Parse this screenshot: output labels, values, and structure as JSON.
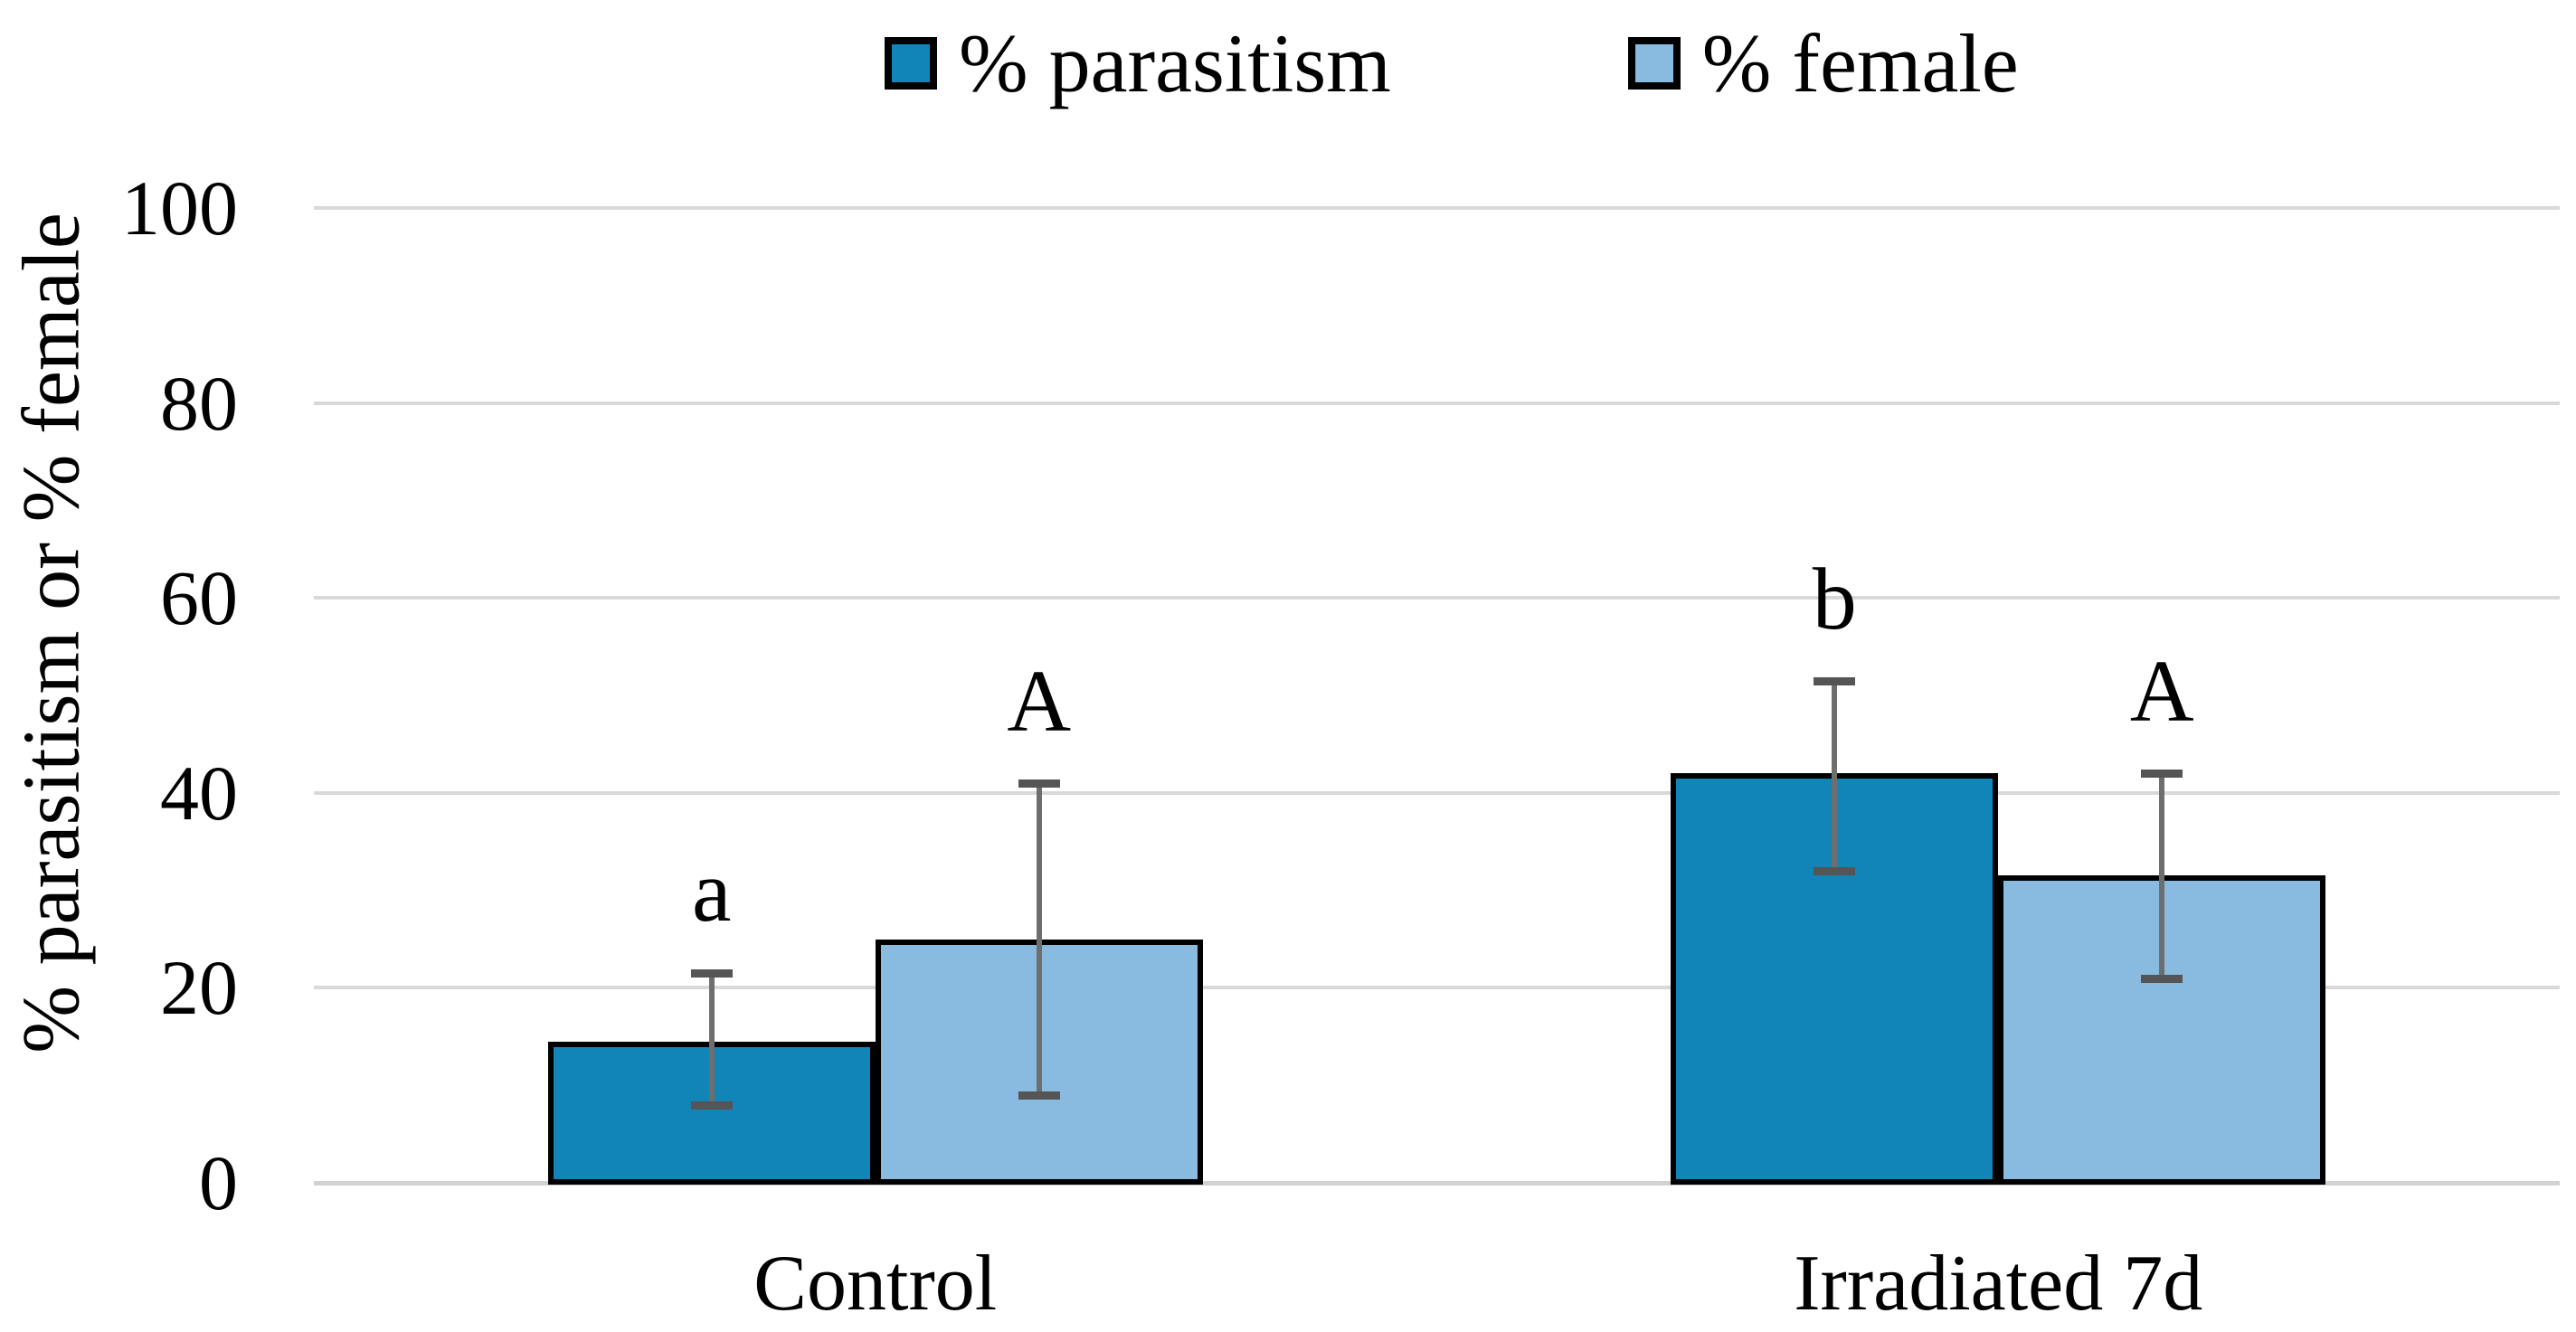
{
  "chart_data": {
    "type": "bar",
    "title": "",
    "categories": [
      "Control",
      "Irradiated 7d"
    ],
    "series": [
      {
        "name": "% parasitism",
        "color": "#1184B8",
        "values": [
          14.5,
          42
        ],
        "error_low": [
          8,
          32
        ],
        "error_high": [
          21.5,
          51.5
        ],
        "letters": [
          "a",
          "b"
        ]
      },
      {
        "name": "% female",
        "color": "#89BADF",
        "values": [
          25,
          31.5
        ],
        "error_low": [
          9,
          21
        ],
        "error_high": [
          41,
          42
        ],
        "letters": [
          "A",
          "A"
        ]
      }
    ],
    "xlabel": "",
    "ylabel": "% parasitism or % female",
    "ylim": [
      0,
      100
    ],
    "yticks": [
      0,
      20,
      40,
      60,
      80,
      100
    ],
    "grid": true,
    "legend_position": "top-center",
    "colors": {
      "gridline": "#D9D9D9",
      "baseline": "#D2D2D2",
      "bar_border": "#000000",
      "error_line": "#6E6E6E",
      "error_cap": "#555555",
      "text": "#000000"
    }
  }
}
